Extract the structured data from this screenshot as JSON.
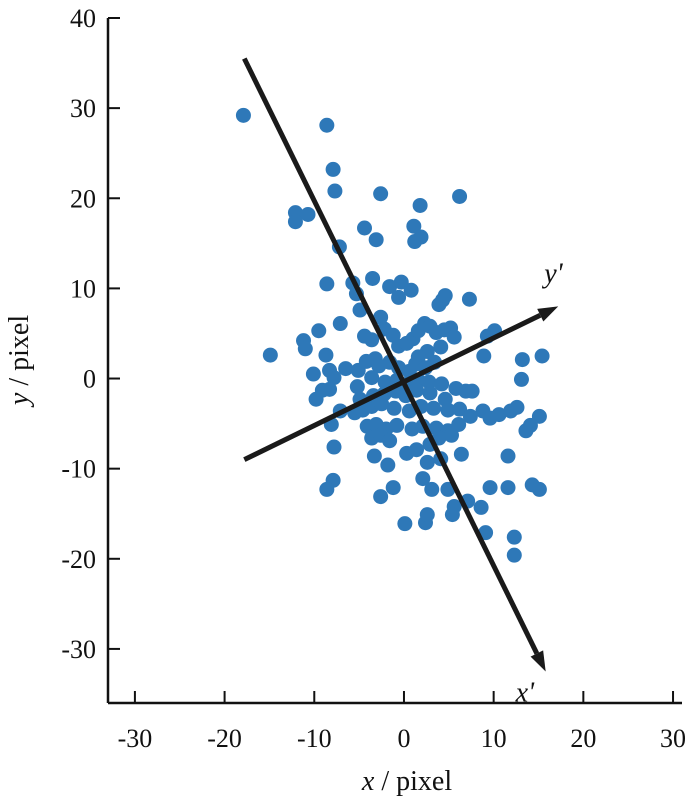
{
  "chart_data": {
    "type": "scatter",
    "title": "",
    "xlabel": "x / pixel",
    "ylabel": "y / pixel",
    "xlim": [
      -33,
      31
    ],
    "ylim": [
      -36,
      40
    ],
    "xticks": [
      -30,
      -20,
      -10,
      0,
      10,
      20,
      30
    ],
    "yticks": [
      -30,
      -20,
      -10,
      0,
      10,
      20,
      30,
      40
    ],
    "xtick_labels": [
      "-30",
      "-20",
      "-10",
      "0",
      "10",
      "20",
      "30"
    ],
    "ytick_labels": [
      "-30",
      "-20",
      "-10",
      "0",
      "10",
      "20",
      "30",
      "40"
    ],
    "grid": false,
    "legend": "none",
    "marker_color": "#2e78b8",
    "points": [
      [
        -17.9,
        29.2
      ],
      [
        -8.6,
        28.1
      ],
      [
        -7.9,
        23.2
      ],
      [
        -7.7,
        20.8
      ],
      [
        -2.6,
        20.5
      ],
      [
        1.8,
        19.2
      ],
      [
        6.2,
        20.2
      ],
      [
        -12.1,
        18.4
      ],
      [
        -10.7,
        18.2
      ],
      [
        -12.1,
        17.4
      ],
      [
        -4.4,
        16.7
      ],
      [
        -3.1,
        15.4
      ],
      [
        1.1,
        16.9
      ],
      [
        1.2,
        15.2
      ],
      [
        1.9,
        15.7
      ],
      [
        -7.2,
        14.6
      ],
      [
        -5.7,
        10.6
      ],
      [
        -8.6,
        10.5
      ],
      [
        -3.5,
        11.1
      ],
      [
        -1.6,
        10.2
      ],
      [
        -0.3,
        10.7
      ],
      [
        0.8,
        9.8
      ],
      [
        -0.6,
        9.0
      ],
      [
        3.9,
        8.2
      ],
      [
        4.3,
        8.7
      ],
      [
        4.6,
        9.2
      ],
      [
        7.3,
        8.8
      ],
      [
        -5.3,
        9.4
      ],
      [
        -4.9,
        7.6
      ],
      [
        -7.1,
        6.1
      ],
      [
        -2.6,
        6.8
      ],
      [
        -4.4,
        4.7
      ],
      [
        -3.6,
        4.3
      ],
      [
        -2.2,
        5.5
      ],
      [
        -1.2,
        4.8
      ],
      [
        -0.6,
        3.6
      ],
      [
        0.3,
        3.9
      ],
      [
        1.0,
        4.4
      ],
      [
        1.6,
        5.3
      ],
      [
        2.3,
        6.1
      ],
      [
        2.9,
        5.8
      ],
      [
        3.6,
        5.1
      ],
      [
        4.5,
        5.4
      ],
      [
        5.2,
        5.6
      ],
      [
        5.6,
        4.6
      ],
      [
        4.1,
        3.5
      ],
      [
        2.6,
        3.0
      ],
      [
        1.6,
        2.4
      ],
      [
        -9.5,
        5.3
      ],
      [
        -11.2,
        4.2
      ],
      [
        -11.0,
        3.3
      ],
      [
        -14.9,
        2.6
      ],
      [
        -8.7,
        2.6
      ],
      [
        -8.3,
        0.9
      ],
      [
        -10.1,
        0.5
      ],
      [
        -7.8,
        0.1
      ],
      [
        -6.5,
        1.1
      ],
      [
        -5.1,
        0.9
      ],
      [
        -4.2,
        1.9
      ],
      [
        -3.2,
        2.2
      ],
      [
        -2.8,
        1.4
      ],
      [
        -1.6,
        1.8
      ],
      [
        -0.6,
        1.2
      ],
      [
        0.6,
        0.8
      ],
      [
        1.3,
        1.6
      ],
      [
        2.4,
        1.2
      ],
      [
        3.4,
        1.8
      ],
      [
        -3.6,
        0.1
      ],
      [
        -2.1,
        -0.4
      ],
      [
        -0.8,
        -0.2
      ],
      [
        0.4,
        -0.6
      ],
      [
        1.6,
        -0.2
      ],
      [
        2.8,
        -0.4
      ],
      [
        4.2,
        -0.6
      ],
      [
        5.8,
        -1.1
      ],
      [
        6.9,
        -1.4
      ],
      [
        7.6,
        -1.4
      ],
      [
        9.3,
        4.7
      ],
      [
        10.1,
        5.3
      ],
      [
        8.9,
        2.5
      ],
      [
        13.2,
        2.1
      ],
      [
        15.4,
        2.5
      ],
      [
        13.1,
        -0.1
      ],
      [
        -9.8,
        -2.3
      ],
      [
        -9.1,
        -1.3
      ],
      [
        -8.3,
        -1.2
      ],
      [
        -5.2,
        -0.9
      ],
      [
        -4.9,
        -2.3
      ],
      [
        -3.4,
        -1.9
      ],
      [
        -2.2,
        -1.7
      ],
      [
        -0.9,
        -1.4
      ],
      [
        0.2,
        -1.9
      ],
      [
        1.4,
        -1.3
      ],
      [
        2.9,
        -1.6
      ],
      [
        4.6,
        -2.3
      ],
      [
        -7.1,
        -3.6
      ],
      [
        -5.5,
        -3.8
      ],
      [
        -4.6,
        -3.5
      ],
      [
        -3.6,
        -3.1
      ],
      [
        -2.5,
        -2.8
      ],
      [
        -1.1,
        -3.3
      ],
      [
        0.6,
        -3.6
      ],
      [
        1.9,
        -3.1
      ],
      [
        3.3,
        -3.3
      ],
      [
        4.9,
        -3.5
      ],
      [
        6.2,
        -3.4
      ],
      [
        7.4,
        -4.2
      ],
      [
        8.8,
        -3.6
      ],
      [
        9.6,
        -4.4
      ],
      [
        10.6,
        -4.0
      ],
      [
        11.9,
        -3.6
      ],
      [
        12.6,
        -3.2
      ],
      [
        14.1,
        -5.2
      ],
      [
        15.1,
        -4.2
      ],
      [
        -8.1,
        -5.1
      ],
      [
        -4.1,
        -5.3
      ],
      [
        -3.1,
        -5.1
      ],
      [
        -2.0,
        -5.6
      ],
      [
        -0.8,
        -5.2
      ],
      [
        0.9,
        -5.6
      ],
      [
        2.1,
        -5.3
      ],
      [
        3.6,
        -5.5
      ],
      [
        4.9,
        -5.8
      ],
      [
        6.1,
        -5.1
      ],
      [
        -3.6,
        -6.6
      ],
      [
        -2.6,
        -6.3
      ],
      [
        -1.6,
        -6.9
      ],
      [
        2.9,
        -7.3
      ],
      [
        3.9,
        -6.6
      ],
      [
        5.3,
        -6.3
      ],
      [
        13.6,
        -5.8
      ],
      [
        -7.8,
        -7.6
      ],
      [
        -3.3,
        -8.6
      ],
      [
        0.3,
        -8.3
      ],
      [
        1.4,
        -7.9
      ],
      [
        2.6,
        -9.3
      ],
      [
        4.1,
        -8.9
      ],
      [
        6.4,
        -8.4
      ],
      [
        11.6,
        -8.6
      ],
      [
        -1.8,
        -9.6
      ],
      [
        -7.9,
        -11.3
      ],
      [
        -8.6,
        -12.3
      ],
      [
        -2.6,
        -13.1
      ],
      [
        -1.2,
        -12.1
      ],
      [
        2.1,
        -11.1
      ],
      [
        3.1,
        -12.3
      ],
      [
        4.9,
        -12.3
      ],
      [
        5.6,
        -14.2
      ],
      [
        7.1,
        -13.6
      ],
      [
        9.6,
        -12.1
      ],
      [
        11.6,
        -12.1
      ],
      [
        14.3,
        -11.8
      ],
      [
        15.1,
        -12.3
      ],
      [
        5.4,
        -15.1
      ],
      [
        8.6,
        -14.3
      ],
      [
        0.1,
        -16.1
      ],
      [
        2.4,
        -16.0
      ],
      [
        2.6,
        -15.1
      ],
      [
        9.1,
        -17.1
      ],
      [
        12.3,
        -17.6
      ],
      [
        12.3,
        -19.6
      ]
    ],
    "arrows": [
      {
        "label": "x'",
        "from": [
          -17.8,
          35.5
        ],
        "to": [
          15.8,
          -32.5
        ]
      },
      {
        "label": "y'",
        "from": [
          -17.8,
          -9.0
        ],
        "to": [
          17.2,
          8.0
        ]
      }
    ]
  }
}
